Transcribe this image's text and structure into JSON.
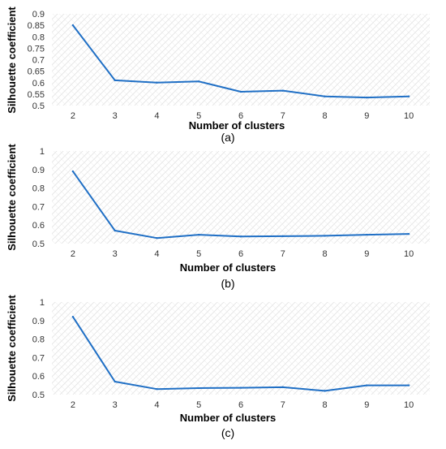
{
  "chart_data": [
    {
      "type": "line",
      "caption": "(a)",
      "xlabel": "Number of clusters",
      "ylabel": "Silhouette coefficient",
      "x": [
        2,
        3,
        4,
        5,
        6,
        7,
        8,
        9,
        10
      ],
      "series": [
        {
          "values": [
            0.85,
            0.61,
            0.6,
            0.605,
            0.56,
            0.565,
            0.54,
            0.535,
            0.54
          ]
        }
      ],
      "ylim": [
        0.5,
        0.9
      ],
      "yticks": [
        0.5,
        0.55,
        0.6,
        0.65,
        0.7,
        0.75,
        0.8,
        0.85,
        0.9
      ],
      "ytick_labels": [
        "0.5",
        "0.55",
        "0.6",
        "0.65",
        "0.7",
        "0.75",
        "0.8",
        "0.85",
        "0.9"
      ],
      "xtick_labels": [
        "2",
        "3",
        "4",
        "5",
        "6",
        "7",
        "8",
        "9",
        "10"
      ],
      "grid": true,
      "line_color": "#1f6fc5"
    },
    {
      "type": "line",
      "caption": "(b)",
      "xlabel": "Number of clusters",
      "ylabel": "Silhouette coefficient",
      "x": [
        2,
        3,
        4,
        5,
        6,
        7,
        8,
        9,
        10
      ],
      "series": [
        {
          "values": [
            0.89,
            0.57,
            0.53,
            0.548,
            0.538,
            0.54,
            0.542,
            0.548,
            0.552
          ]
        }
      ],
      "ylim": [
        0.5,
        1.0
      ],
      "yticks": [
        0.5,
        0.6,
        0.7,
        0.8,
        0.9,
        1.0
      ],
      "ytick_labels": [
        "0.5",
        "0.6",
        "0.7",
        "0.8",
        "0.9",
        "1"
      ],
      "xtick_labels": [
        "2",
        "3",
        "4",
        "5",
        "6",
        "7",
        "8",
        "9",
        "10"
      ],
      "grid": true,
      "line_color": "#1f6fc5"
    },
    {
      "type": "line",
      "caption": "(c)",
      "xlabel": "Number of clusters",
      "ylabel": "Silhouette coefficient",
      "x": [
        2,
        3,
        4,
        5,
        6,
        7,
        8,
        9,
        10
      ],
      "series": [
        {
          "values": [
            0.92,
            0.57,
            0.53,
            0.535,
            0.537,
            0.54,
            0.52,
            0.55,
            0.55
          ]
        }
      ],
      "ylim": [
        0.5,
        1.0
      ],
      "yticks": [
        0.5,
        0.6,
        0.7,
        0.8,
        0.9,
        1.0
      ],
      "ytick_labels": [
        "0.5",
        "0.6",
        "0.7",
        "0.8",
        "0.9",
        "1"
      ],
      "xtick_labels": [
        "2",
        "3",
        "4",
        "5",
        "6",
        "7",
        "8",
        "9",
        "10"
      ],
      "grid": true,
      "line_color": "#1f6fc5"
    }
  ]
}
